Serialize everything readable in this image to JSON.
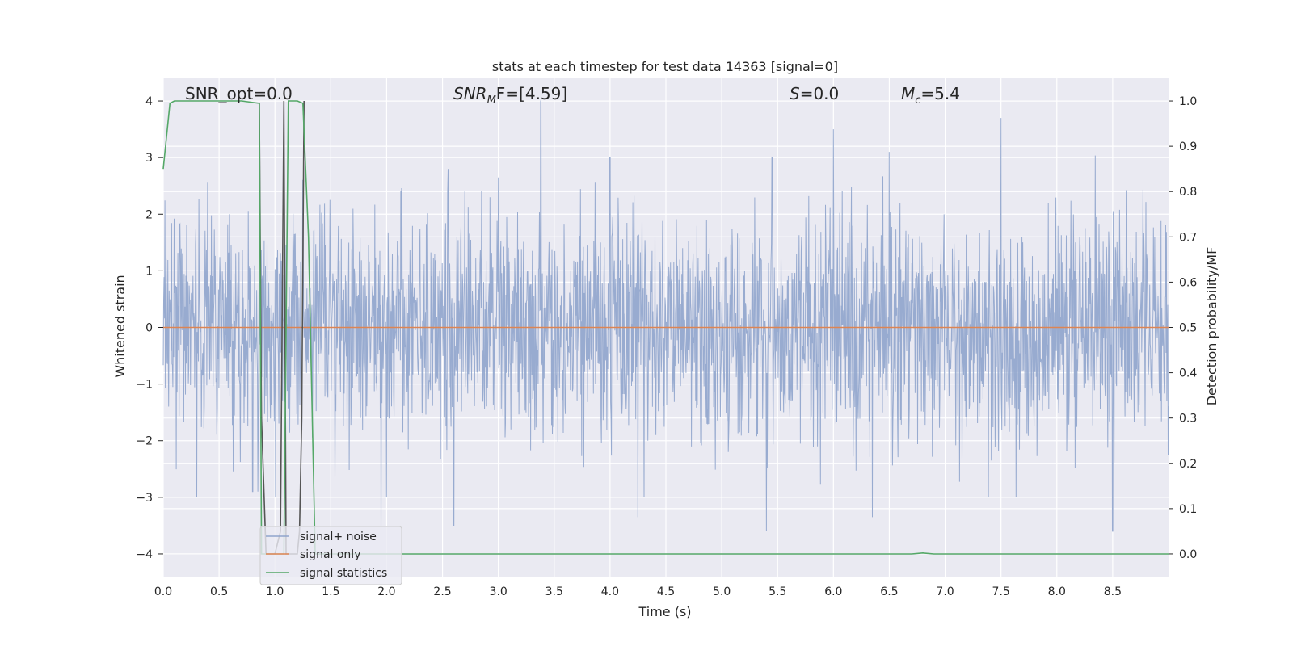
{
  "chart_data": {
    "type": "line",
    "title": "stats at each timestep for test data 14363 [signal=0]",
    "xlabel": "Time (s)",
    "ylabel": "Whitened strain",
    "y2label": "Detection probability/MF",
    "xlim": [
      0,
      9.0
    ],
    "ylim": [
      -4.4,
      4.4
    ],
    "y2lim": [
      -0.05,
      1.05
    ],
    "xticks": [
      0.0,
      0.5,
      1.0,
      1.5,
      2.0,
      2.5,
      3.0,
      3.5,
      4.0,
      4.5,
      5.0,
      5.5,
      6.0,
      6.5,
      7.0,
      7.5,
      8.0,
      8.5
    ],
    "xtick_labels": [
      "0.0",
      "0.5",
      "1.0",
      "1.5",
      "2.0",
      "2.5",
      "3.0",
      "3.5",
      "4.0",
      "4.5",
      "5.0",
      "5.5",
      "6.0",
      "6.5",
      "7.0",
      "7.5",
      "8.0",
      "8.5"
    ],
    "yticks": [
      -4,
      -3,
      -2,
      -1,
      0,
      1,
      2,
      3,
      4
    ],
    "ytick_labels": [
      "−4",
      "−3",
      "−2",
      "−1",
      "0",
      "1",
      "2",
      "3",
      "4"
    ],
    "y2ticks": [
      0.0,
      0.1,
      0.2,
      0.3,
      0.4,
      0.5,
      0.6,
      0.7,
      0.8,
      0.9,
      1.0
    ],
    "y2tick_labels": [
      "0.0",
      "0.1",
      "0.2",
      "0.3",
      "0.4",
      "0.5",
      "0.6",
      "0.7",
      "0.8",
      "0.9",
      "1.0"
    ],
    "grid": true,
    "legend_position": "lower-left",
    "series": [
      {
        "name": "signal+ noise",
        "axis": "left",
        "color": "#8fa4cc",
        "description": "dense noise band, approx. -3.6 to 4.0",
        "x_range": [
          0,
          9.0
        ],
        "peaks": [
          [
            0.8,
            3.3
          ],
          [
            1.25,
            2.6
          ],
          [
            2.55,
            2.8
          ],
          [
            3.38,
            4.0
          ],
          [
            4.0,
            3.0
          ],
          [
            5.45,
            3.0
          ],
          [
            6.0,
            3.5
          ],
          [
            6.5,
            3.1
          ],
          [
            7.5,
            3.7
          ],
          [
            8.5,
            3.5
          ]
        ],
        "troughs": [
          [
            0.3,
            -3.0
          ],
          [
            0.8,
            -2.9
          ],
          [
            1.95,
            -3.6
          ],
          [
            2.6,
            -3.5
          ],
          [
            4.25,
            -3.35
          ],
          [
            5.4,
            -3.6
          ],
          [
            6.35,
            -3.35
          ],
          [
            8.5,
            -3.6
          ]
        ]
      },
      {
        "name": "signal only",
        "axis": "left",
        "color": "#dd8452",
        "x": [
          0,
          9.0
        ],
        "y": [
          0,
          0
        ]
      },
      {
        "name": "signal statistics",
        "axis": "right",
        "color": "#55a868",
        "x": [
          0.0,
          0.06,
          0.1,
          0.3,
          0.5,
          0.7,
          0.86,
          0.88,
          0.92,
          1.0,
          1.08,
          1.12,
          1.2,
          1.25,
          1.3,
          1.36,
          1.45,
          1.6,
          2.0,
          3.0,
          4.0,
          5.0,
          6.0,
          6.7,
          6.8,
          6.9,
          7.5,
          8.0,
          8.5,
          9.0
        ],
        "y": [
          0.85,
          0.995,
          1.0,
          1.0,
          1.0,
          1.0,
          0.995,
          0.0,
          0.0,
          0.0,
          0.0,
          1.0,
          1.0,
          0.995,
          0.7,
          0.0,
          0.0,
          0.0,
          0.0,
          0.0,
          0.0,
          0.0,
          0.0,
          0.0,
          0.002,
          0.0,
          0.0,
          0.0,
          0.0,
          0.0
        ]
      },
      {
        "name": "",
        "axis": "right",
        "color": "#555555",
        "x": [
          0.86,
          0.88,
          0.92,
          1.0,
          1.05,
          1.08,
          1.1,
          1.15,
          1.2,
          1.22,
          1.24,
          1.26
        ],
        "y": [
          0.995,
          0.3,
          0.0,
          0.0,
          0.05,
          1.0,
          0.0,
          0.0,
          0.0,
          0.05,
          0.3,
          1.0
        ]
      }
    ],
    "annotations": [
      {
        "text": "SNR_opt=0.0",
        "italic": false
      },
      {
        "text": "SNR",
        "italic": true,
        "sub": "M",
        "tail": "F=[4.59]"
      },
      {
        "text": "S",
        "italic": true,
        "tail": "=0.0"
      },
      {
        "text": "M",
        "italic": true,
        "sub": "c",
        "tail": "=5.4"
      }
    ]
  },
  "colors": {
    "axes_bg": "#eaeaf2",
    "grid": "#ffffff",
    "text": "#262626"
  }
}
